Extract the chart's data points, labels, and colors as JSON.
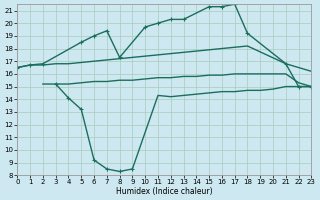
{
  "xlabel": "Humidex (Indice chaleur)",
  "bg_color": "#cde8f0",
  "grid_color": "#aaccbb",
  "line_color": "#1a6e5e",
  "xlim": [
    0,
    23
  ],
  "ylim": [
    8,
    21.5
  ],
  "yticks": [
    8,
    9,
    10,
    11,
    12,
    13,
    14,
    15,
    16,
    17,
    18,
    19,
    20,
    21
  ],
  "xticks": [
    0,
    1,
    2,
    3,
    4,
    5,
    6,
    7,
    8,
    9,
    10,
    11,
    12,
    13,
    14,
    15,
    16,
    17,
    18,
    19,
    20,
    21,
    22,
    23
  ],
  "curve_top_x": [
    0,
    1,
    2,
    5,
    6,
    7,
    8,
    10,
    11,
    12,
    13,
    15,
    16,
    17,
    18,
    21,
    22,
    23
  ],
  "curve_top_y": [
    16.5,
    16.7,
    16.8,
    18.5,
    19.0,
    19.4,
    17.3,
    19.7,
    20.0,
    20.3,
    20.3,
    21.3,
    21.3,
    21.5,
    19.2,
    16.8,
    15.0,
    15.0
  ],
  "curve_mid_x": [
    0,
    1,
    2,
    3,
    4,
    5,
    6,
    7,
    8,
    9,
    10,
    11,
    12,
    13,
    14,
    15,
    16,
    17,
    18,
    21,
    22,
    23
  ],
  "curve_mid_y": [
    16.5,
    16.7,
    16.7,
    16.8,
    16.8,
    16.9,
    17.0,
    17.1,
    17.2,
    17.3,
    17.4,
    17.5,
    17.6,
    17.7,
    17.8,
    17.9,
    18.0,
    18.1,
    18.2,
    16.8,
    16.5,
    16.2
  ],
  "curve_flat_x": [
    2,
    3,
    4,
    5,
    6,
    7,
    8,
    9,
    10,
    11,
    12,
    13,
    14,
    15,
    16,
    17,
    18,
    19,
    20,
    21,
    22,
    23
  ],
  "curve_flat_y": [
    15.2,
    15.2,
    15.2,
    15.3,
    15.4,
    15.4,
    15.5,
    15.5,
    15.6,
    15.7,
    15.7,
    15.8,
    15.8,
    15.9,
    15.9,
    16.0,
    16.0,
    16.0,
    16.0,
    16.0,
    15.3,
    15.0
  ],
  "curve_dip_x1": [
    3,
    4,
    5,
    6,
    7,
    8,
    9
  ],
  "curve_dip_y1": [
    15.2,
    14.1,
    13.2,
    9.2,
    8.5,
    8.3,
    8.5
  ],
  "curve_dip_x2": [
    9,
    11,
    12,
    13,
    14,
    15,
    16,
    17,
    18,
    19,
    20,
    21,
    22,
    23
  ],
  "curve_dip_y2": [
    8.5,
    14.3,
    14.2,
    14.3,
    14.4,
    14.5,
    14.6,
    14.6,
    14.7,
    14.7,
    14.8,
    15.0,
    15.0,
    15.0
  ]
}
